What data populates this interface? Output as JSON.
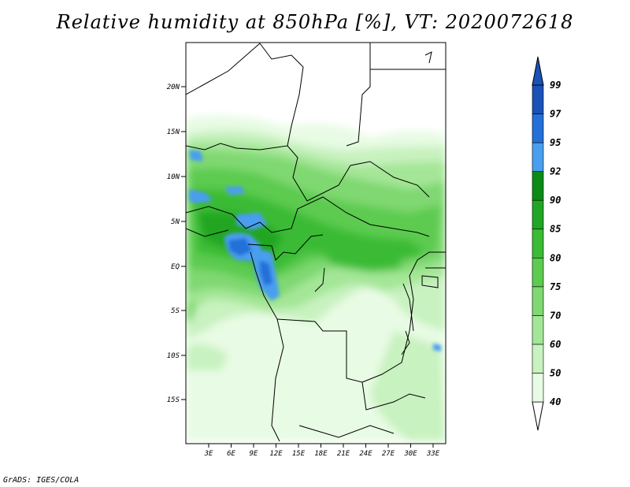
{
  "title": "Relative humidity at 850hPa [%], VT: 2020072618",
  "credit": "GrADS: IGES/COLA",
  "map": {
    "lat_labels": [
      "20N",
      "15N",
      "10N",
      "5N",
      "EQ",
      "5S",
      "10S",
      "15S"
    ],
    "lon_labels": [
      "3E",
      "6E",
      "9E",
      "12E",
      "15E",
      "18E",
      "21E",
      "24E",
      "27E",
      "30E",
      "33E"
    ]
  },
  "colorbar": {
    "levels": [
      "40",
      "50",
      "60",
      "70",
      "75",
      "80",
      "85",
      "90",
      "92",
      "95",
      "97",
      "99"
    ],
    "colors": [
      "#ffffff",
      "#e8fbe4",
      "#c8f2bf",
      "#a4e697",
      "#7fd871",
      "#5ccb50",
      "#3bbb36",
      "#20a624",
      "#0c8b17",
      "#4a9ef0",
      "#2270d8",
      "#1a52b8"
    ]
  }
}
